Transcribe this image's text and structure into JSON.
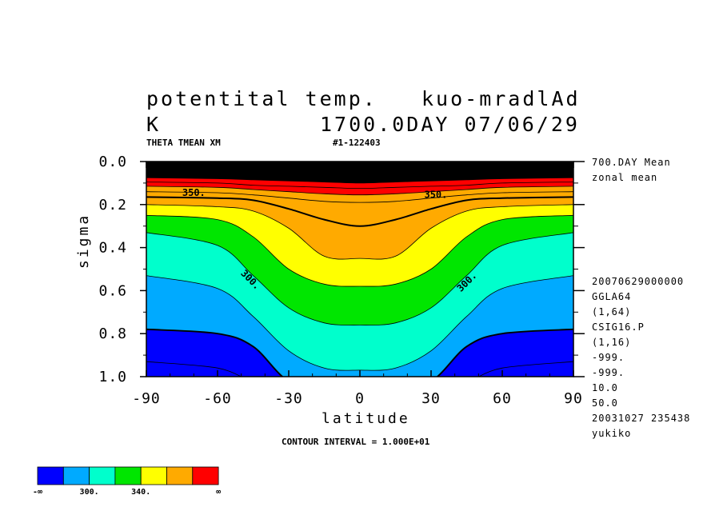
{
  "header": {
    "title_left_line1": "potentital temp.",
    "title_right_line1": "kuo-mradlAd",
    "title_left_line2": "K",
    "title_right_line2": "1700.0DAY 07/06/29",
    "var_label": "THETA TMEAN XM",
    "run_id": "#1-122403"
  },
  "side_info": {
    "mean_line1": "700.DAY Mean",
    "mean_line2": "zonal mean",
    "meta": [
      "20070629000000",
      "GGLA64",
      "(1,64)",
      "CSIG16.P",
      "(1,16)",
      "-999.",
      "-999.",
      "10.0",
      "50.0",
      "20031027 235438",
      "yukiko"
    ]
  },
  "footer": {
    "contour_interval": "CONTOUR INTERVAL = 1.000E+01"
  },
  "chart_data": {
    "type": "heatmap",
    "subtype": "filled-contour",
    "title": "potentital temp.",
    "units": "K",
    "xlabel": "latitude",
    "ylabel": "sigma",
    "xlim": [
      -90,
      90
    ],
    "ylim": [
      1.0,
      0.0
    ],
    "y_inverted": true,
    "x_ticks": [
      "-90",
      "-60",
      "-30",
      "0",
      "30",
      "60",
      "90"
    ],
    "y_ticks": [
      "0.0",
      "0.2",
      "0.4",
      "0.6",
      "0.8",
      "1.0"
    ],
    "contour_interval": 10,
    "contour_labels": [
      {
        "text": "300.",
        "lat": -47,
        "sigma": 0.56
      },
      {
        "text": "300.",
        "lat": 46,
        "sigma": 0.57
      },
      {
        "text": "350.",
        "lat": -70,
        "sigma": 0.16
      },
      {
        "text": "350.",
        "lat": 32,
        "sigma": 0.17
      }
    ],
    "theta_contours_sigma": {
      "lat": [
        -90,
        -60,
        -45,
        -30,
        -15,
        0,
        15,
        30,
        45,
        60,
        90
      ],
      "levels": [
        {
          "theta": 290,
          "sigma": [
            0.93,
            0.96,
            1.02,
            1.02,
            1.02,
            1.02,
            1.02,
            1.02,
            1.02,
            0.96,
            0.93
          ]
        },
        {
          "theta": 300,
          "sigma": [
            0.78,
            0.8,
            0.86,
            1.02,
            1.02,
            1.02,
            1.02,
            1.02,
            0.86,
            0.8,
            0.78
          ]
        },
        {
          "theta": 310,
          "sigma": [
            0.53,
            0.59,
            0.72,
            0.88,
            0.96,
            0.97,
            0.96,
            0.88,
            0.72,
            0.59,
            0.53
          ]
        },
        {
          "theta": 320,
          "sigma": [
            0.33,
            0.39,
            0.53,
            0.68,
            0.75,
            0.76,
            0.75,
            0.68,
            0.53,
            0.39,
            0.33
          ]
        },
        {
          "theta": 330,
          "sigma": [
            0.25,
            0.27,
            0.35,
            0.5,
            0.57,
            0.58,
            0.57,
            0.5,
            0.35,
            0.27,
            0.25
          ]
        },
        {
          "theta": 340,
          "sigma": [
            0.2,
            0.21,
            0.23,
            0.31,
            0.44,
            0.45,
            0.44,
            0.31,
            0.23,
            0.21,
            0.2
          ]
        },
        {
          "theta": 350,
          "sigma": [
            0.165,
            0.17,
            0.18,
            0.22,
            0.27,
            0.3,
            0.27,
            0.22,
            0.18,
            0.17,
            0.165
          ]
        },
        {
          "theta": 360,
          "sigma": [
            0.14,
            0.145,
            0.155,
            0.17,
            0.185,
            0.19,
            0.185,
            0.17,
            0.155,
            0.145,
            0.14
          ]
        },
        {
          "theta": 370,
          "sigma": [
            0.115,
            0.12,
            0.13,
            0.14,
            0.15,
            0.155,
            0.15,
            0.14,
            0.13,
            0.12,
            0.115
          ]
        },
        {
          "theta": 380,
          "sigma": [
            0.095,
            0.1,
            0.11,
            0.115,
            0.12,
            0.125,
            0.12,
            0.115,
            0.11,
            0.1,
            0.095
          ]
        },
        {
          "theta": 400,
          "sigma": [
            0.075,
            0.08,
            0.085,
            0.09,
            0.095,
            0.1,
            0.095,
            0.09,
            0.085,
            0.08,
            0.075
          ]
        }
      ]
    },
    "colorbar": {
      "colors": [
        "#0000ff",
        "#00aaff",
        "#00ffcc",
        "#00e600",
        "#ffff00",
        "#ffaa00",
        "#ff0000"
      ],
      "labels": [
        "-∞",
        "300.",
        "340.",
        "∞"
      ],
      "cut_theta": [
        300,
        310,
        320,
        330,
        340,
        350
      ]
    },
    "top_fill_color": "#000000"
  }
}
